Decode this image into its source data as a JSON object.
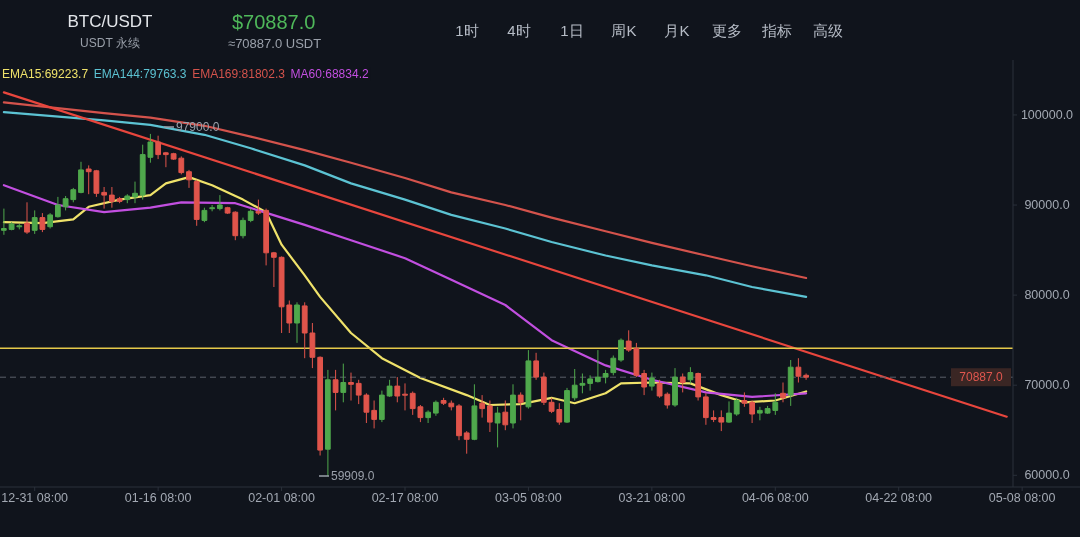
{
  "chart_data": {
    "type": "candlestick",
    "title": "BTC/USDT",
    "subtitle": "USDT 永续",
    "annotations": [
      "$70887.0",
      "≈70887.0 USDT",
      "1时",
      "4时",
      "1日",
      "周K",
      "月K",
      "更多",
      "指标",
      "高级",
      "97900.0",
      "59909.0"
    ],
    "categories": [
      null,
      null,
      null,
      null,
      "12-31 08:00",
      null,
      null,
      null,
      null,
      null,
      null,
      null,
      null,
      null,
      null,
      null,
      null,
      null,
      null,
      null,
      "01-16 08:00",
      null,
      null,
      null,
      null,
      null,
      null,
      null,
      null,
      null,
      null,
      null,
      null,
      null,
      null,
      null,
      "02-01 08:00",
      null,
      null,
      null,
      null,
      null,
      null,
      null,
      null,
      null,
      null,
      null,
      null,
      null,
      null,
      null,
      "02-17 08:00",
      null,
      null,
      null,
      null,
      null,
      null,
      null,
      null,
      null,
      null,
      null,
      null,
      null,
      null,
      null,
      "03-05 08:00",
      null,
      null,
      null,
      null,
      null,
      null,
      null,
      null,
      null,
      null,
      null,
      null,
      null,
      null,
      null,
      "03-21 08:00",
      null,
      null,
      null,
      null,
      null,
      null,
      null,
      null,
      null,
      null,
      null,
      null,
      null,
      null,
      null,
      "04-06 08:00",
      null,
      null,
      null,
      null,
      null,
      null,
      null,
      null,
      null,
      null,
      null,
      null,
      null,
      null,
      null,
      "04-22 08:00",
      null,
      null,
      null,
      null,
      null,
      null,
      null,
      null,
      null,
      null,
      null,
      null,
      null,
      null,
      null,
      "05-08 08:00",
      null,
      null,
      null,
      null,
      null,
      null,
      null
    ],
    "ohlc": [
      [
        87200,
        89600,
        86700,
        87400
      ],
      [
        87300,
        88100,
        87200,
        87900
      ],
      [
        87600,
        87900,
        87300,
        87700
      ],
      [
        88000,
        90300,
        86800,
        87000
      ],
      [
        87200,
        89400,
        86800,
        88600
      ],
      [
        88600,
        89100,
        87000,
        87300
      ],
      [
        87600,
        89100,
        87400,
        88900
      ],
      [
        88700,
        90900,
        88600,
        90000
      ],
      [
        89800,
        91000,
        89400,
        90700
      ],
      [
        90600,
        91900,
        90300,
        91700
      ],
      [
        91400,
        94800,
        91300,
        93900
      ],
      [
        94000,
        94400,
        91200,
        93700
      ],
      [
        93800,
        93900,
        90900,
        91300
      ],
      [
        91400,
        92000,
        89600,
        91100
      ],
      [
        91100,
        92000,
        89700,
        90400
      ],
      [
        90700,
        90900,
        90200,
        90400
      ],
      [
        90600,
        91200,
        90200,
        91000
      ],
      [
        90900,
        92600,
        90200,
        91300
      ],
      [
        91100,
        96700,
        90600,
        95600
      ],
      [
        95300,
        97900,
        94700,
        97000
      ],
      [
        97000,
        97700,
        95100,
        95600
      ],
      [
        95800,
        95900,
        94200,
        95600
      ],
      [
        95700,
        95800,
        95000,
        95100
      ],
      [
        95200,
        95400,
        93400,
        93600
      ],
      [
        93700,
        93900,
        91900,
        92800
      ],
      [
        92600,
        92800,
        87700,
        88400
      ],
      [
        88300,
        89700,
        88100,
        89400
      ],
      [
        89600,
        90000,
        89300,
        89700
      ],
      [
        89600,
        91100,
        89400,
        90000
      ],
      [
        89700,
        89800,
        89000,
        89100
      ],
      [
        89200,
        89300,
        86100,
        86600
      ],
      [
        86600,
        88600,
        86300,
        88300
      ],
      [
        88300,
        89600,
        88100,
        89300
      ],
      [
        89300,
        90600,
        88900,
        89100
      ],
      [
        89400,
        89600,
        83300,
        84700
      ],
      [
        84700,
        84800,
        80900,
        84200
      ],
      [
        84200,
        84300,
        75800,
        78700
      ],
      [
        78900,
        79400,
        75800,
        76900
      ],
      [
        76900,
        79200,
        74700,
        78900
      ],
      [
        78800,
        79200,
        73000,
        75800
      ],
      [
        75800,
        76900,
        71900,
        73100
      ],
      [
        73100,
        73200,
        62200,
        62800
      ],
      [
        62900,
        71700,
        59909,
        70600
      ],
      [
        70600,
        71700,
        67200,
        69200
      ],
      [
        69200,
        72400,
        68100,
        70300
      ],
      [
        70300,
        71400,
        68300,
        70100
      ],
      [
        70200,
        70600,
        67900,
        68900
      ],
      [
        68900,
        69100,
        65800,
        67000
      ],
      [
        67200,
        68300,
        65200,
        66200
      ],
      [
        66200,
        69400,
        65900,
        68900
      ],
      [
        68800,
        70600,
        68700,
        69900
      ],
      [
        69900,
        70900,
        68100,
        68800
      ],
      [
        69000,
        70200,
        67200,
        68900
      ],
      [
        69100,
        69300,
        66700,
        67400
      ],
      [
        67600,
        67800,
        65900,
        66400
      ],
      [
        66400,
        67200,
        65800,
        67000
      ],
      [
        66900,
        68300,
        66600,
        68100
      ],
      [
        68300,
        68600,
        67800,
        68000
      ],
      [
        68000,
        68300,
        67200,
        67600
      ],
      [
        67700,
        67900,
        63900,
        64400
      ],
      [
        64700,
        64900,
        62400,
        64000
      ],
      [
        64000,
        70100,
        63900,
        67700
      ],
      [
        68000,
        68900,
        66400,
        67400
      ],
      [
        67700,
        68300,
        64800,
        65900
      ],
      [
        65800,
        67600,
        63100,
        66900
      ],
      [
        67000,
        68300,
        65000,
        65600
      ],
      [
        65800,
        70100,
        65200,
        68900
      ],
      [
        68900,
        69200,
        66100,
        68100
      ],
      [
        67600,
        73900,
        67400,
        72700
      ],
      [
        72700,
        73600,
        70600,
        70900
      ],
      [
        70900,
        71400,
        67800,
        68100
      ],
      [
        68100,
        68600,
        66900,
        67100
      ],
      [
        67300,
        68000,
        65600,
        65900
      ],
      [
        65900,
        69700,
        65800,
        69400
      ],
      [
        68600,
        71800,
        68300,
        70000
      ],
      [
        70000,
        71300,
        69100,
        70200
      ],
      [
        70200,
        71100,
        69400,
        70700
      ],
      [
        70400,
        73900,
        70300,
        70900
      ],
      [
        70900,
        71700,
        70200,
        71300
      ],
      [
        71400,
        73300,
        71100,
        73000
      ],
      [
        72800,
        75200,
        72600,
        75000
      ],
      [
        74900,
        76100,
        73700,
        73900
      ],
      [
        74100,
        74700,
        70900,
        71100
      ],
      [
        71300,
        71700,
        68900,
        69800
      ],
      [
        69900,
        71400,
        69400,
        70800
      ],
      [
        70200,
        70600,
        68600,
        68800
      ],
      [
        69000,
        69200,
        67400,
        67800
      ],
      [
        67800,
        71900,
        67600,
        70900
      ],
      [
        70900,
        71300,
        69200,
        70300
      ],
      [
        70600,
        72000,
        70200,
        71400
      ],
      [
        71300,
        71400,
        68300,
        68700
      ],
      [
        68700,
        69100,
        65600,
        66400
      ],
      [
        66400,
        67200,
        65900,
        66200
      ],
      [
        66400,
        67200,
        64900,
        65900
      ],
      [
        65900,
        68200,
        65800,
        66900
      ],
      [
        66800,
        68600,
        66600,
        68300
      ],
      [
        68300,
        69200,
        67600,
        68000
      ],
      [
        68100,
        68300,
        65800,
        66800
      ],
      [
        66900,
        67600,
        66100,
        67200
      ],
      [
        66900,
        67700,
        66800,
        67400
      ],
      [
        67200,
        69100,
        66700,
        68100
      ],
      [
        69100,
        70300,
        68100,
        68600
      ],
      [
        68900,
        72800,
        67700,
        72000
      ],
      [
        72000,
        73000,
        70300,
        71000
      ],
      [
        71100,
        71300,
        70600,
        70887
      ],
      null,
      null,
      null,
      null,
      null,
      null,
      null,
      null,
      null,
      null,
      null,
      null,
      null,
      null,
      null,
      null,
      null,
      null,
      null,
      null,
      null,
      null,
      null,
      null,
      null,
      null,
      null,
      null,
      null,
      null,
      null,
      null,
      null,
      null,
      null
    ],
    "series": [
      {
        "name": "EMA15:69223.7",
        "type": "line",
        "color": "#efe26a",
        "values": [
          88100,
          null,
          null,
          null,
          null,
          88000,
          null,
          null,
          null,
          88400,
          null,
          89800,
          null,
          null,
          null,
          90600,
          null,
          null,
          null,
          91100,
          null,
          92400,
          null,
          null,
          93100,
          null,
          null,
          92200,
          null,
          null,
          null,
          90600,
          null,
          null,
          89200,
          null,
          85600,
          null,
          null,
          82200,
          null,
          79800,
          null,
          null,
          null,
          75800,
          null,
          null,
          null,
          73000,
          null,
          null,
          null,
          null,
          70800,
          null,
          null,
          null,
          null,
          null,
          68900,
          null,
          null,
          67800,
          null,
          null,
          null,
          67900,
          null,
          null,
          null,
          68600,
          null,
          null,
          68000,
          null,
          null,
          null,
          69100,
          null,
          70200,
          null,
          null,
          null,
          70300,
          null,
          null,
          null,
          null,
          70200,
          null,
          null,
          null,
          68900,
          null,
          null,
          68100,
          null,
          null,
          null,
          68300,
          null,
          null,
          null,
          69300,
          null,
          null,
          null,
          null,
          null,
          null,
          null,
          null,
          null,
          null,
          null,
          null,
          null,
          null,
          null,
          null,
          null,
          null,
          null,
          null,
          null,
          null,
          null,
          null,
          null,
          null,
          null,
          null,
          null,
          null,
          null,
          null,
          null,
          null,
          null
        ]
      },
      {
        "name": "EMA144:79763.3",
        "type": "line",
        "color": "#5cc3d3",
        "values": [
          100300,
          null,
          null,
          null,
          null,
          null,
          null,
          null,
          null,
          null,
          null,
          null,
          null,
          99400,
          null,
          null,
          null,
          null,
          null,
          98900,
          null,
          null,
          null,
          null,
          null,
          null,
          97800,
          null,
          null,
          null,
          null,
          null,
          96300,
          null,
          null,
          null,
          null,
          null,
          null,
          94400,
          null,
          null,
          null,
          null,
          null,
          92400,
          null,
          null,
          null,
          null,
          null,
          null,
          90600,
          null,
          null,
          null,
          null,
          null,
          88900,
          null,
          null,
          null,
          null,
          null,
          null,
          87400,
          null,
          null,
          null,
          null,
          null,
          85900,
          null,
          null,
          null,
          null,
          null,
          null,
          84400,
          null,
          null,
          null,
          null,
          null,
          83300,
          null,
          null,
          null,
          null,
          null,
          null,
          82200,
          null,
          null,
          null,
          null,
          null,
          80900,
          null,
          null,
          null,
          null,
          null,
          null,
          79800,
          null,
          null,
          null,
          null,
          null,
          null,
          null,
          null,
          null,
          null,
          null,
          null,
          null,
          null,
          null,
          null,
          null,
          null,
          null,
          null,
          null,
          null,
          null,
          null,
          null,
          null,
          null,
          null,
          null,
          null,
          null,
          null,
          null,
          null,
          null
        ]
      },
      {
        "name": "EMA169:81802.3",
        "type": "line",
        "color": "#d4534c",
        "values": [
          101400,
          null,
          null,
          null,
          null,
          null,
          null,
          null,
          null,
          null,
          null,
          null,
          null,
          100200,
          null,
          null,
          null,
          null,
          null,
          99700,
          null,
          null,
          null,
          null,
          null,
          null,
          98800,
          null,
          null,
          null,
          null,
          null,
          97600,
          null,
          null,
          null,
          null,
          null,
          null,
          96100,
          null,
          null,
          null,
          null,
          null,
          94700,
          null,
          null,
          null,
          null,
          null,
          null,
          93000,
          null,
          null,
          null,
          null,
          null,
          91400,
          null,
          null,
          null,
          null,
          null,
          null,
          90000,
          null,
          null,
          null,
          null,
          null,
          88600,
          null,
          null,
          null,
          null,
          null,
          null,
          87100,
          null,
          null,
          null,
          null,
          null,
          85800,
          null,
          null,
          null,
          null,
          null,
          null,
          84400,
          null,
          null,
          null,
          null,
          null,
          83200,
          null,
          null,
          null,
          null,
          null,
          null,
          81900,
          null,
          null,
          null,
          null,
          null,
          null,
          null,
          null,
          null,
          null,
          null,
          null,
          null,
          null,
          null,
          null,
          null,
          null,
          null,
          null,
          null,
          null,
          null,
          null,
          null,
          null,
          null,
          null,
          null,
          null,
          null,
          null,
          null,
          null,
          null
        ]
      },
      {
        "name": "MA60:68834.2",
        "type": "line",
        "color": "#c24fe0",
        "values": [
          92200,
          null,
          null,
          null,
          null,
          null,
          null,
          90000,
          null,
          null,
          null,
          null,
          null,
          89200,
          null,
          null,
          null,
          null,
          null,
          89700,
          null,
          null,
          null,
          90300,
          null,
          null,
          null,
          null,
          null,
          null,
          90200,
          null,
          null,
          89400,
          null,
          null,
          null,
          null,
          null,
          87800,
          null,
          null,
          null,
          null,
          null,
          86100,
          null,
          null,
          null,
          null,
          null,
          null,
          84100,
          null,
          null,
          null,
          null,
          null,
          81700,
          null,
          null,
          null,
          null,
          null,
          null,
          78900,
          null,
          null,
          null,
          null,
          null,
          75000,
          null,
          null,
          null,
          null,
          null,
          null,
          72200,
          null,
          null,
          null,
          null,
          null,
          70600,
          null,
          null,
          null,
          null,
          null,
          null,
          69200,
          null,
          null,
          null,
          null,
          null,
          68700,
          null,
          null,
          null,
          null,
          null,
          null,
          69100,
          null,
          null,
          null,
          null,
          null,
          null,
          null,
          null,
          null,
          null,
          null,
          null,
          null,
          null,
          null,
          null,
          null,
          null,
          null,
          null,
          null,
          null,
          null,
          null,
          null,
          null,
          null,
          null,
          null,
          null,
          null,
          null,
          null,
          null,
          null
        ]
      },
      {
        "type": "line",
        "color": "#e8463d",
        "values": [
          102500,
          null,
          null,
          null,
          null,
          null,
          null,
          null,
          null,
          null,
          null,
          null,
          null,
          null,
          null,
          null,
          null,
          null,
          null,
          null,
          null,
          null,
          null,
          null,
          null,
          null,
          null,
          null,
          null,
          null,
          null,
          null,
          null,
          null,
          null,
          null,
          null,
          null,
          null,
          null,
          null,
          null,
          null,
          null,
          null,
          null,
          null,
          null,
          null,
          null,
          null,
          null,
          null,
          null,
          null,
          null,
          null,
          null,
          null,
          null,
          null,
          null,
          null,
          null,
          null,
          null,
          null,
          null,
          null,
          null,
          null,
          null,
          null,
          null,
          null,
          null,
          null,
          null,
          null,
          null,
          null,
          null,
          null,
          null,
          null,
          null,
          null,
          null,
          null,
          null,
          null,
          null,
          null,
          null,
          null,
          null,
          null,
          null,
          null,
          null,
          null,
          null,
          null,
          null,
          null,
          null,
          null,
          null,
          null,
          null,
          null,
          null,
          null,
          null,
          null,
          null,
          null,
          null,
          null,
          null,
          null,
          null,
          null,
          null,
          null,
          null,
          null,
          null,
          null,
          null,
          66500,
          null,
          null,
          null,
          null,
          null,
          null,
          null,
          null,
          null
        ]
      }
    ],
    "legend": "top left",
    "ref_lines": [
      {
        "axis": "y",
        "value": 74100,
        "color": "#e5c94a",
        "line_style": "solid"
      },
      {
        "axis": "y",
        "value": 70887,
        "label": "70887.0",
        "color": "#5a606b",
        "line_style": "dashed"
      }
    ],
    "ylim": [
      58700,
      106100
    ],
    "yticks": [
      {
        "value": 60000,
        "label": "60000.0"
      },
      {
        "value": 70000,
        "label": "70000.0"
      },
      {
        "value": 80000,
        "label": "80000.0"
      },
      {
        "value": 90000,
        "label": "90000.0"
      },
      {
        "value": 100000,
        "label": "100000.0"
      }
    ]
  }
}
